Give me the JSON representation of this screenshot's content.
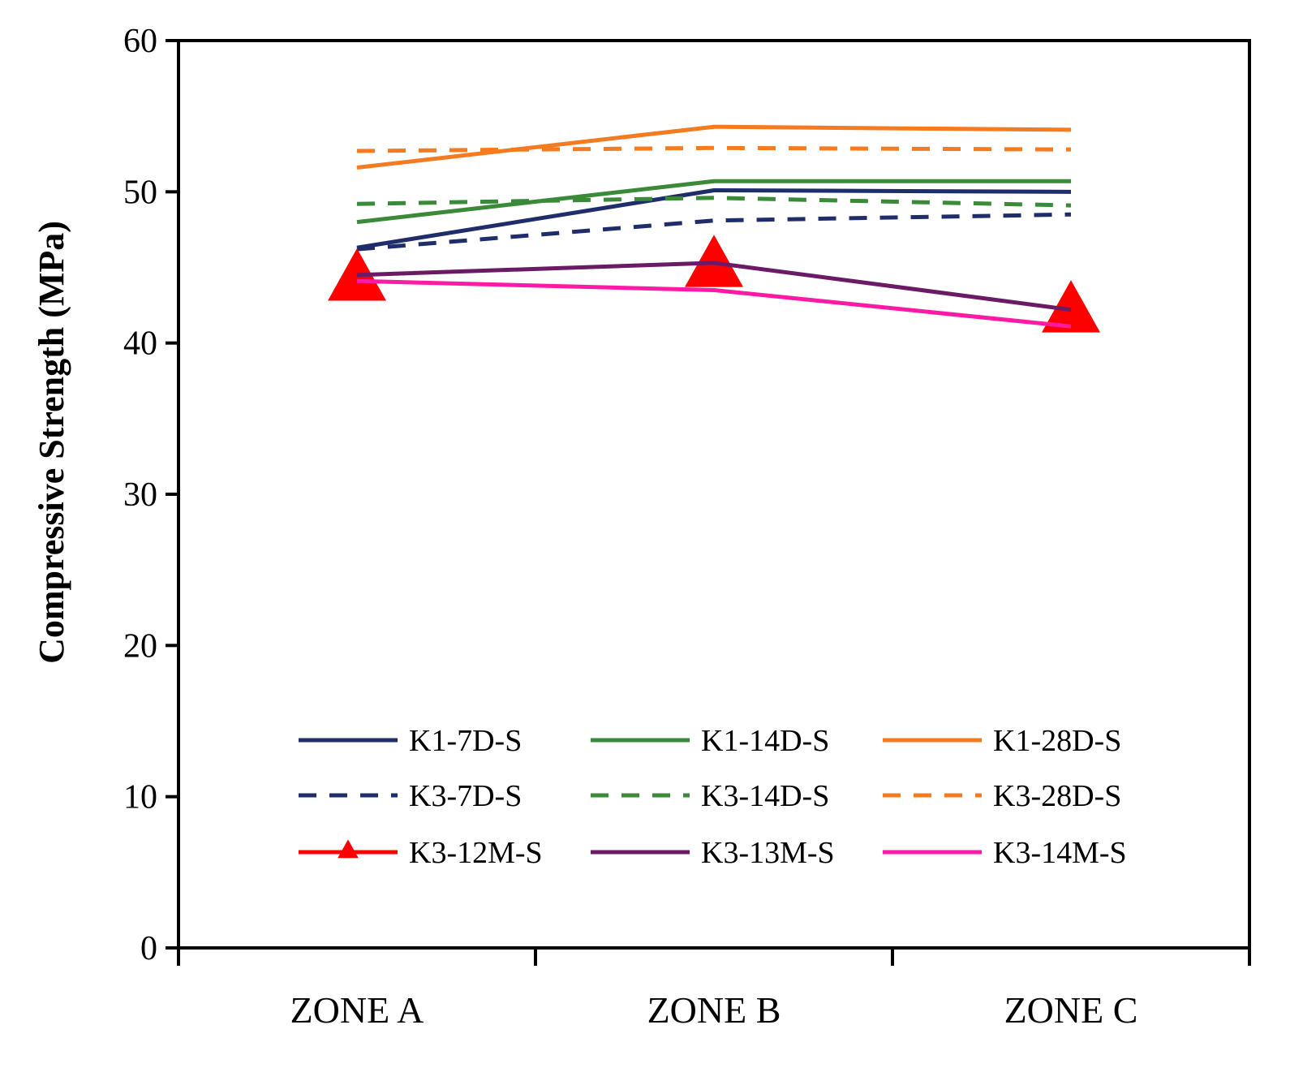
{
  "chart_data": {
    "type": "line",
    "title": "",
    "xlabel": "",
    "ylabel": "Compressive Strength (MPa)",
    "categories": [
      "ZONE A",
      "ZONE B",
      "ZONE C"
    ],
    "ylim": [
      0,
      60
    ],
    "yticks": [
      0,
      10,
      20,
      30,
      40,
      50,
      60
    ],
    "grid": false,
    "legend_position": "bottom-center",
    "series": [
      {
        "name": "K1-7D-S",
        "values": [
          46.3,
          50.1,
          50.0
        ],
        "color": "#1f2d6b",
        "dash": "solid",
        "marker": "none"
      },
      {
        "name": "K1-14D-S",
        "values": [
          48.0,
          50.7,
          50.7
        ],
        "color": "#3a8a3a",
        "dash": "solid",
        "marker": "none"
      },
      {
        "name": "K1-28D-S",
        "values": [
          51.6,
          54.3,
          54.1
        ],
        "color": "#f47b20",
        "dash": "solid",
        "marker": "none"
      },
      {
        "name": "K3-7D-S",
        "values": [
          46.2,
          48.1,
          48.5
        ],
        "color": "#1f2d6b",
        "dash": "dashed",
        "marker": "none"
      },
      {
        "name": "K3-14D-S",
        "values": [
          49.2,
          49.6,
          49.1
        ],
        "color": "#3a8a3a",
        "dash": "dashed",
        "marker": "none"
      },
      {
        "name": "K3-28D-S",
        "values": [
          52.7,
          52.9,
          52.8
        ],
        "color": "#f47b20",
        "dash": "dashed",
        "marker": "none"
      },
      {
        "name": "K3-12M-S",
        "values": [
          44.2,
          45.1,
          42.1
        ],
        "color": "#ff0000",
        "dash": "none",
        "marker": "triangle"
      },
      {
        "name": "K3-13M-S",
        "values": [
          44.5,
          45.3,
          42.2
        ],
        "color": "#6b1a66",
        "dash": "solid",
        "marker": "none"
      },
      {
        "name": "K3-14M-S",
        "values": [
          44.1,
          43.5,
          41.1
        ],
        "color": "#ff1aa6",
        "dash": "solid",
        "marker": "none"
      }
    ]
  }
}
